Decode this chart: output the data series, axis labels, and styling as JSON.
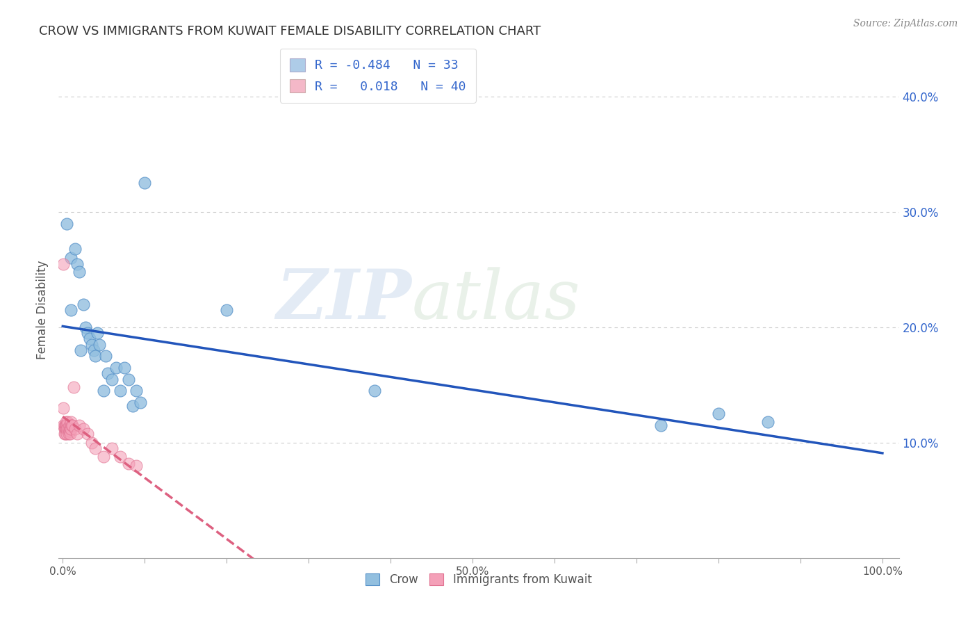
{
  "title": "CROW VS IMMIGRANTS FROM KUWAIT FEMALE DISABILITY CORRELATION CHART",
  "source": "Source: ZipAtlas.com",
  "ylabel": "Female Disability",
  "xlim": [
    -0.005,
    1.02
  ],
  "ylim": [
    0.0,
    0.43
  ],
  "yticks": [
    0.1,
    0.2,
    0.3,
    0.4
  ],
  "ytick_labels": [
    "10.0%",
    "20.0%",
    "30.0%",
    "40.0%"
  ],
  "xticks": [
    0.0,
    0.1,
    0.2,
    0.3,
    0.4,
    0.5,
    0.6,
    0.7,
    0.8,
    0.9,
    1.0
  ],
  "xtick_labels": [
    "0.0%",
    "",
    "",
    "",
    "",
    "50.0%",
    "",
    "",
    "",
    "",
    "100.0%"
  ],
  "legend_label1": "R = -0.484   N = 33",
  "legend_label2": "R =   0.018   N = 40",
  "legend_color1": "#aecce8",
  "legend_color2": "#f4b8c8",
  "crow_color": "#92bfdf",
  "kuwait_color": "#f4a0b8",
  "crow_edge": "#5590c8",
  "kuwait_edge": "#e07090",
  "trendline_crow_color": "#2255bb",
  "trendline_kuwait_color": "#dd6080",
  "watermark_zip": "ZIP",
  "watermark_atlas": "atlas",
  "crow_x": [
    0.005,
    0.01,
    0.01,
    0.015,
    0.018,
    0.02,
    0.022,
    0.025,
    0.028,
    0.03,
    0.033,
    0.035,
    0.038,
    0.04,
    0.042,
    0.045,
    0.05,
    0.052,
    0.055,
    0.06,
    0.065,
    0.07,
    0.075,
    0.08,
    0.085,
    0.09,
    0.095,
    0.1,
    0.2,
    0.38,
    0.73,
    0.8,
    0.86
  ],
  "crow_y": [
    0.29,
    0.215,
    0.26,
    0.268,
    0.255,
    0.248,
    0.18,
    0.22,
    0.2,
    0.195,
    0.19,
    0.185,
    0.18,
    0.175,
    0.195,
    0.185,
    0.145,
    0.175,
    0.16,
    0.155,
    0.165,
    0.145,
    0.165,
    0.155,
    0.132,
    0.145,
    0.135,
    0.325,
    0.215,
    0.145,
    0.115,
    0.125,
    0.118
  ],
  "kuwait_x": [
    0.001,
    0.001,
    0.001,
    0.002,
    0.002,
    0.002,
    0.003,
    0.003,
    0.003,
    0.004,
    0.004,
    0.004,
    0.005,
    0.005,
    0.005,
    0.006,
    0.006,
    0.007,
    0.007,
    0.008,
    0.008,
    0.009,
    0.009,
    0.01,
    0.01,
    0.011,
    0.012,
    0.013,
    0.015,
    0.018,
    0.02,
    0.025,
    0.03,
    0.035,
    0.04,
    0.05,
    0.06,
    0.07,
    0.08,
    0.09
  ],
  "kuwait_y": [
    0.255,
    0.13,
    0.115,
    0.115,
    0.112,
    0.108,
    0.115,
    0.112,
    0.108,
    0.118,
    0.115,
    0.112,
    0.115,
    0.112,
    0.108,
    0.118,
    0.112,
    0.112,
    0.108,
    0.115,
    0.11,
    0.112,
    0.108,
    0.118,
    0.112,
    0.115,
    0.115,
    0.148,
    0.112,
    0.108,
    0.115,
    0.112,
    0.108,
    0.1,
    0.095,
    0.088,
    0.095,
    0.088,
    0.082,
    0.08
  ]
}
